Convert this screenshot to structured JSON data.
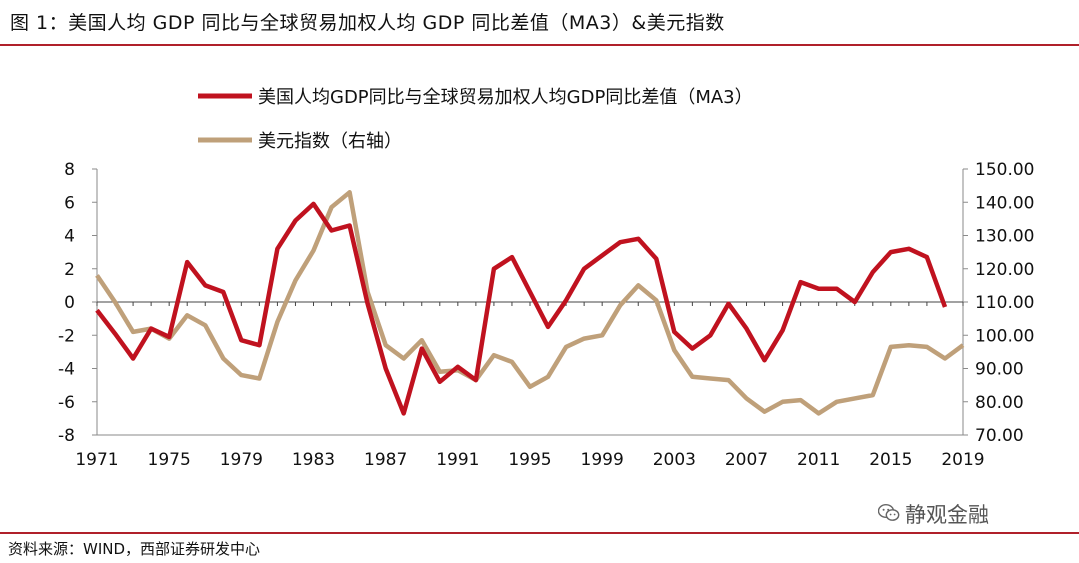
{
  "title": "图 1：美国人均 GDP 同比与全球贸易加权人均 GDP 同比差值（MA3）&美元指数",
  "source": "资料来源：WIND，西部证券研发中心",
  "watermark": "静观金融",
  "watermark_icon": "wechat-icon",
  "chart_data": {
    "type": "line",
    "title": "",
    "xlabel": "",
    "ylabel": "",
    "x": [
      1971,
      1972,
      1973,
      1974,
      1975,
      1976,
      1977,
      1978,
      1979,
      1980,
      1981,
      1982,
      1983,
      1984,
      1985,
      1986,
      1987,
      1988,
      1989,
      1990,
      1991,
      1992,
      1993,
      1994,
      1995,
      1996,
      1997,
      1998,
      1999,
      2000,
      2001,
      2002,
      2003,
      2004,
      2005,
      2006,
      2007,
      2008,
      2009,
      2010,
      2011,
      2012,
      2013,
      2014,
      2015,
      2016,
      2017,
      2018,
      2019
    ],
    "x_ticks": [
      "1971",
      "1975",
      "1979",
      "1983",
      "1987",
      "1991",
      "1995",
      "1999",
      "2003",
      "2007",
      "2011",
      "2015",
      "2019"
    ],
    "left_axis": {
      "ylim": [
        -8,
        8
      ],
      "ticks": [
        "8",
        "6",
        "4",
        "2",
        "0",
        "-2",
        "-4",
        "-6",
        "-8"
      ]
    },
    "right_axis": {
      "ylim": [
        70,
        150
      ],
      "ticks": [
        "150.00",
        "140.00",
        "130.00",
        "120.00",
        "110.00",
        "100.00",
        "90.00",
        "80.00",
        "70.00"
      ]
    },
    "legend_position": "top-center",
    "series": [
      {
        "name": "美国人均GDP同比与全球贸易加权人均GDP同比差值（MA3）",
        "color": "#c0121f",
        "axis": "left",
        "values": [
          -0.5,
          -1.9,
          -3.4,
          -1.6,
          -2.1,
          2.4,
          1.0,
          0.6,
          -2.3,
          -2.6,
          3.2,
          4.9,
          5.9,
          4.3,
          4.6,
          -0.1,
          -4.0,
          -6.7,
          -2.8,
          -4.8,
          -3.9,
          -4.7,
          2.0,
          2.7,
          0.6,
          -1.5,
          0.1,
          2.0,
          2.8,
          3.6,
          3.8,
          2.6,
          -1.8,
          -2.8,
          -2.0,
          -0.1,
          -1.6,
          -3.5,
          -1.7,
          1.2,
          0.8,
          0.8,
          0.0,
          1.8,
          3.0,
          3.2,
          2.7,
          -0.3,
          null
        ]
      },
      {
        "name": "美元指数（右轴）",
        "color": "#bfa07a",
        "axis": "right",
        "values": [
          118.0,
          110.0,
          101.0,
          102.0,
          99.0,
          106.0,
          103.0,
          93.0,
          88.0,
          87.0,
          104.0,
          116.5,
          125.5,
          138.5,
          143.0,
          113.0,
          97.0,
          93.0,
          98.5,
          89.0,
          89.5,
          86.5,
          94.0,
          92.0,
          84.5,
          87.5,
          96.5,
          99.0,
          100.0,
          109.0,
          115.0,
          110.5,
          95.5,
          87.5,
          87.0,
          86.5,
          81.0,
          77.0,
          80.0,
          80.5,
          76.5,
          80.0,
          81.0,
          82.0,
          96.5,
          97.0,
          96.5,
          93.0,
          97.0
        ]
      }
    ]
  }
}
